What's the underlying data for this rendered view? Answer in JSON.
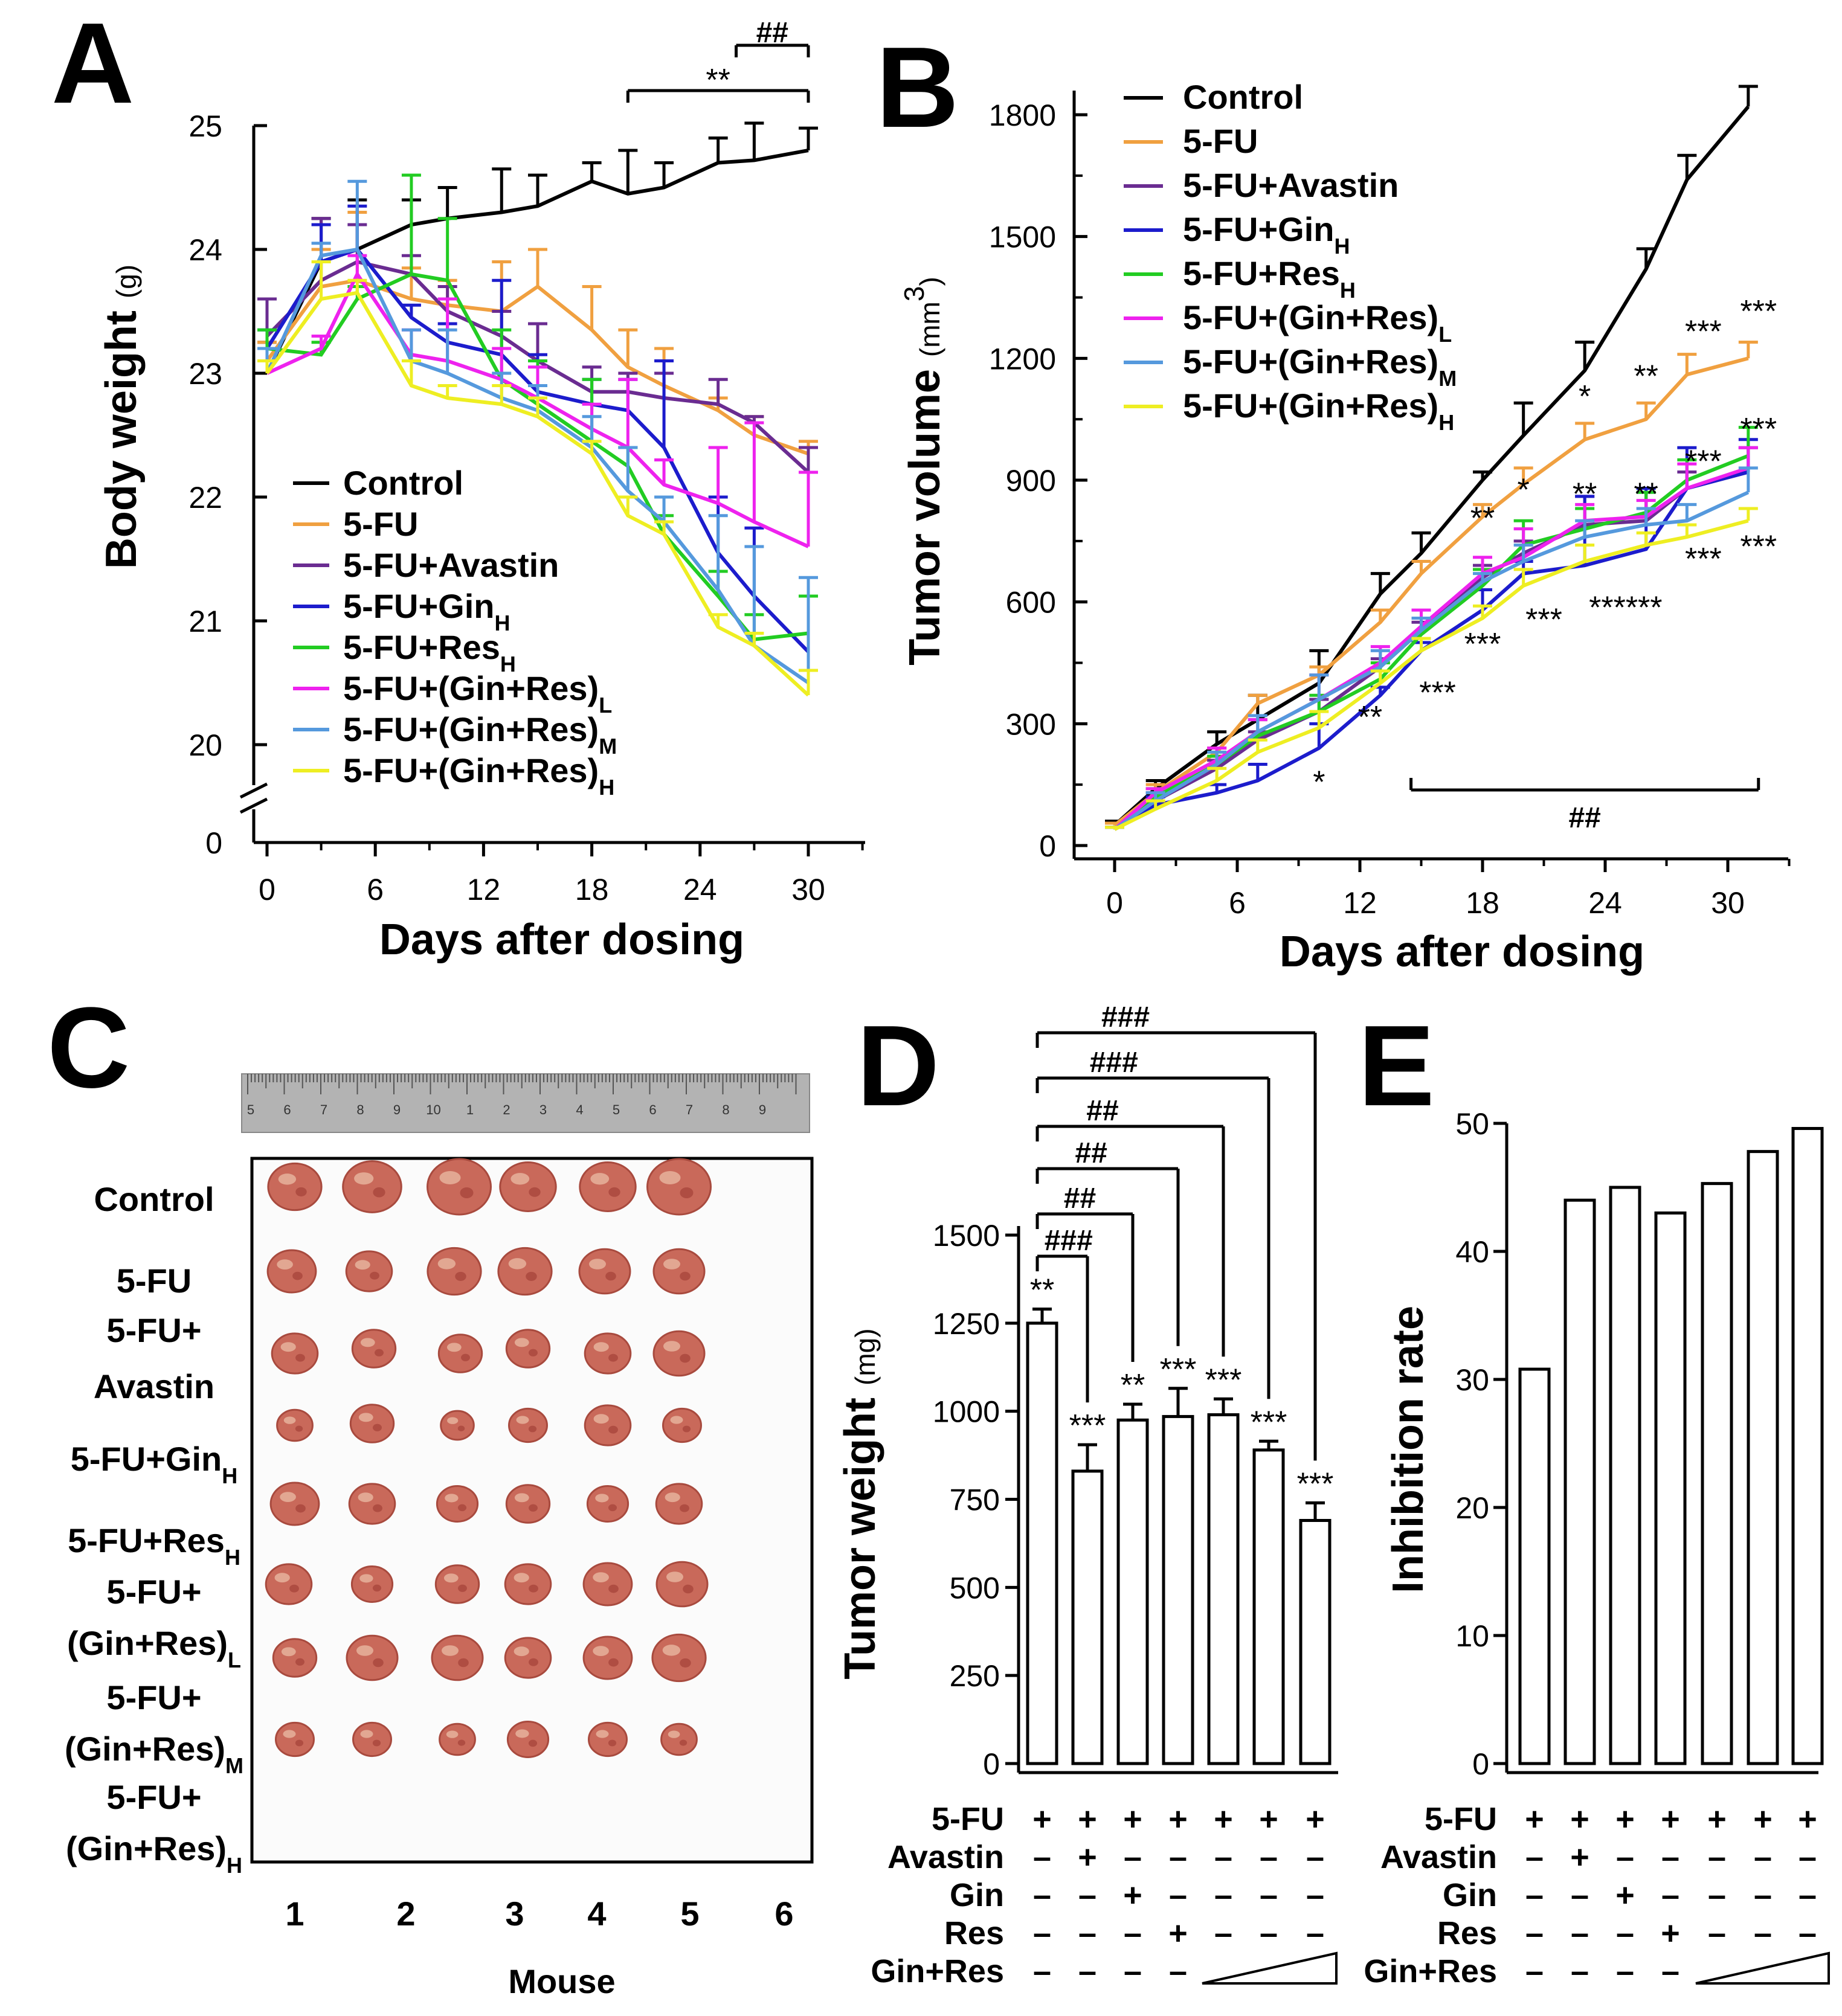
{
  "panels": [
    "A",
    "B",
    "C",
    "D",
    "E"
  ],
  "colors": {
    "Control": "#000000",
    "5-FU": "#f0a040",
    "5-FU+Avastin": "#6a2c91",
    "5-FU+GinH": "#1c1ccc",
    "5-FU+ResH": "#22cc22",
    "5-FU+(Gin+Res)L": "#ee22ee",
    "5-FU+(Gin+Res)M": "#5599dd",
    "5-FU+(Gin+Res)H": "#eeee22"
  },
  "chart_data": [
    {
      "panel": "A",
      "type": "line",
      "xlabel": "Days after dosing",
      "ylabel": "Body weight",
      "yunit": "(g)",
      "x": [
        0,
        3,
        5,
        8,
        10,
        13,
        15,
        18,
        20,
        22,
        25,
        27,
        30
      ],
      "xticks": [
        0,
        6,
        12,
        18,
        24,
        30
      ],
      "yticks": [
        0,
        20,
        21,
        22,
        23,
        24,
        25
      ],
      "ylim": [
        20,
        25
      ],
      "axis_break": true,
      "series": [
        {
          "name": "Control",
          "main": "Control",
          "sub": "",
          "values": [
            23.0,
            23.9,
            24.0,
            24.2,
            24.25,
            24.3,
            24.35,
            24.55,
            24.45,
            24.5,
            24.7,
            24.72,
            24.8
          ],
          "err": [
            0.25,
            0.35,
            0.4,
            0.2,
            0.25,
            0.35,
            0.25,
            0.15,
            0.35,
            0.2,
            0.2,
            0.3,
            0.18
          ]
        },
        {
          "name": "5-FU",
          "main": "5-FU",
          "sub": "",
          "values": [
            23.1,
            23.7,
            23.75,
            23.6,
            23.55,
            23.5,
            23.7,
            23.35,
            23.05,
            22.9,
            22.7,
            22.5,
            22.35
          ],
          "err": [
            0.15,
            0.3,
            0.55,
            0.25,
            0.2,
            0.4,
            0.3,
            0.35,
            0.3,
            0.3,
            0.1,
            0.15,
            0.1
          ]
        },
        {
          "name": "5-FU+Avastin",
          "main": "5-FU+Avastin",
          "sub": "",
          "values": [
            23.3,
            23.75,
            23.9,
            23.8,
            23.5,
            23.3,
            23.1,
            22.85,
            22.85,
            22.8,
            22.75,
            22.6,
            22.2
          ],
          "err": [
            0.3,
            0.5,
            0.3,
            0.15,
            0.2,
            0.2,
            0.3,
            0.2,
            0.15,
            0.2,
            0.2,
            0.05,
            0.2
          ]
        },
        {
          "name": "5-FU+GinH",
          "main": "5-FU+Gin",
          "sub": "H",
          "values": [
            23.2,
            23.9,
            24.0,
            23.45,
            23.25,
            23.15,
            22.85,
            22.75,
            22.7,
            22.4,
            21.55,
            21.2,
            20.75
          ],
          "err": [
            0.15,
            0.3,
            0.35,
            0.1,
            0.15,
            0.6,
            0.3,
            0.2,
            0.25,
            0.7,
            0.45,
            0.55,
            0.45
          ]
        },
        {
          "name": "5-FU+ResH",
          "main": "5-FU+Res",
          "sub": "H",
          "values": [
            23.2,
            23.15,
            23.6,
            23.8,
            23.75,
            22.95,
            22.75,
            22.45,
            22.25,
            21.7,
            21.2,
            20.85,
            20.9
          ],
          "err": [
            0.15,
            0.1,
            0.1,
            0.8,
            0.5,
            0.4,
            0.35,
            0.5,
            0.15,
            0.15,
            0.2,
            0.2,
            0.3
          ]
        },
        {
          "name": "5-FU+(Gin+Res)L",
          "main": "5-FU+(Gin+Res)",
          "sub": "L",
          "values": [
            23.0,
            23.2,
            23.8,
            23.15,
            23.1,
            22.95,
            22.8,
            22.55,
            22.4,
            22.1,
            21.95,
            21.8,
            21.6
          ],
          "err": [
            0.2,
            0.1,
            0.15,
            0.2,
            0.5,
            0.25,
            0.25,
            0.2,
            0.55,
            0.2,
            0.45,
            0.8,
            0.6
          ]
        },
        {
          "name": "5-FU+(Gin+Res)M",
          "main": "5-FU+(Gin+Res)",
          "sub": "M",
          "values": [
            23.0,
            23.95,
            24.0,
            23.1,
            23.0,
            22.8,
            22.7,
            22.4,
            22.05,
            21.8,
            21.25,
            20.8,
            20.5
          ],
          "err": [
            0.2,
            0.1,
            0.55,
            0.25,
            0.35,
            0.2,
            0.2,
            0.25,
            0.35,
            0.2,
            0.6,
            0.8,
            0.85
          ]
        },
        {
          "name": "5-FU+(Gin+Res)H",
          "main": "5-FU+(Gin+Res)",
          "sub": "H",
          "values": [
            23.0,
            23.6,
            23.65,
            22.9,
            22.8,
            22.75,
            22.65,
            22.35,
            21.85,
            21.7,
            20.95,
            20.8,
            20.4
          ],
          "err": [
            0.1,
            0.3,
            0.1,
            0.2,
            0.1,
            0.15,
            0.15,
            0.1,
            0.15,
            0.1,
            0.1,
            0.1,
            0.2
          ]
        }
      ],
      "annotations": [
        {
          "text": "**",
          "from": 20,
          "to": 30
        },
        {
          "text": "##",
          "from": 26,
          "to": 30
        }
      ]
    },
    {
      "panel": "B",
      "type": "line",
      "xlabel": "Days after dosing",
      "ylabel": "Tumor volume",
      "yunit": "(mm",
      "yunit_sup": "3",
      "yunit_end": ")",
      "x": [
        0,
        2,
        5,
        7,
        10,
        13,
        15,
        18,
        20,
        23,
        26,
        28,
        31
      ],
      "xticks": [
        0,
        6,
        12,
        18,
        24,
        30
      ],
      "yticks": [
        0,
        300,
        600,
        900,
        1200,
        1500,
        1800
      ],
      "ylim": [
        0,
        1800
      ],
      "series": [
        {
          "name": "Control",
          "main": "Control",
          "sub": "",
          "values": [
            50,
            140,
            250,
            310,
            400,
            620,
            720,
            900,
            1010,
            1170,
            1420,
            1640,
            1820
          ],
          "err": [
            10,
            20,
            30,
            60,
            80,
            50,
            50,
            20,
            80,
            70,
            50,
            60,
            50
          ]
        },
        {
          "name": "5-FU",
          "main": "5-FU",
          "sub": "",
          "values": [
            50,
            130,
            230,
            350,
            420,
            550,
            670,
            810,
            890,
            1000,
            1050,
            1160,
            1200
          ],
          "err": [
            5,
            20,
            10,
            20,
            20,
            30,
            30,
            30,
            40,
            40,
            40,
            50,
            40
          ]
        },
        {
          "name": "5-FU+Avastin",
          "main": "5-FU+Avastin",
          "sub": "",
          "values": [
            40,
            110,
            190,
            260,
            330,
            440,
            530,
            660,
            720,
            790,
            800,
            880,
            920
          ],
          "err": [
            5,
            20,
            20,
            20,
            30,
            20,
            20,
            30,
            30,
            70,
            70,
            40,
            60
          ]
        },
        {
          "name": "5-FU+GinH",
          "main": "5-FU+Gin",
          "sub": "H",
          "values": [
            40,
            100,
            130,
            160,
            240,
            370,
            480,
            580,
            670,
            690,
            730,
            880,
            920
          ],
          "err": [
            5,
            20,
            20,
            40,
            60,
            20,
            20,
            50,
            30,
            170,
            150,
            100,
            80
          ]
        },
        {
          "name": "5-FU+ResH",
          "main": "5-FU+Res",
          "sub": "H",
          "values": [
            40,
            120,
            200,
            270,
            330,
            410,
            520,
            640,
            740,
            780,
            820,
            900,
            960
          ],
          "err": [
            5,
            20,
            20,
            40,
            40,
            40,
            40,
            40,
            60,
            50,
            50,
            50,
            70
          ]
        },
        {
          "name": "5-FU+(Gin+Res)L",
          "main": "5-FU+(Gin+Res)",
          "sub": "L",
          "values": [
            40,
            130,
            210,
            280,
            360,
            450,
            540,
            670,
            710,
            800,
            810,
            880,
            930
          ],
          "err": [
            5,
            10,
            30,
            30,
            60,
            40,
            40,
            40,
            70,
            40,
            40,
            60,
            50
          ]
        },
        {
          "name": "5-FU+(Gin+Res)M",
          "main": "5-FU+(Gin+Res)",
          "sub": "M",
          "values": [
            40,
            110,
            200,
            280,
            360,
            440,
            530,
            650,
            700,
            760,
            790,
            800,
            870
          ],
          "err": [
            5,
            20,
            30,
            40,
            60,
            40,
            30,
            20,
            40,
            40,
            40,
            40,
            60
          ]
        },
        {
          "name": "5-FU+(Gin+Res)H",
          "main": "5-FU+(Gin+Res)",
          "sub": "H",
          "values": [
            40,
            90,
            160,
            230,
            290,
            400,
            480,
            560,
            640,
            700,
            740,
            760,
            800
          ],
          "err": [
            5,
            20,
            30,
            30,
            40,
            30,
            30,
            30,
            40,
            40,
            30,
            30,
            30
          ]
        }
      ],
      "annotations": [
        {
          "text": "*",
          "x": 10,
          "y": 130
        },
        {
          "text": "**",
          "x": 12.5,
          "y": 290
        },
        {
          "text": "***",
          "x": 15.8,
          "y": 350
        },
        {
          "text": "***",
          "x": 18,
          "y": 470
        },
        {
          "text": "***",
          "x": 21,
          "y": 530
        },
        {
          "text": "**",
          "x": 18,
          "y": 780
        },
        {
          "text": "*",
          "x": 20,
          "y": 850
        },
        {
          "text": "**",
          "x": 23,
          "y": 840
        },
        {
          "text": "**",
          "x": 26,
          "y": 840
        },
        {
          "text": "*",
          "x": 23,
          "y": 1080
        },
        {
          "text": "**",
          "x": 26,
          "y": 1130
        },
        {
          "text": "***",
          "x": 28.8,
          "y": 1240
        },
        {
          "text": "***",
          "x": 31.5,
          "y": 1290
        },
        {
          "text": "***",
          "x": 28.8,
          "y": 920
        },
        {
          "text": "***",
          "x": 31.5,
          "y": 1000
        },
        {
          "text": "******",
          "x": 25,
          "y": 560
        },
        {
          "text": "***",
          "x": 28.8,
          "y": 680
        },
        {
          "text": "***",
          "x": 31.5,
          "y": 710
        }
      ],
      "bracket": {
        "text": "##",
        "from": 14.5,
        "to": 31.5
      }
    },
    {
      "panel": "D",
      "type": "bar",
      "ylabel": "Tumor weight",
      "yunit": "(mg)",
      "values": [
        1250,
        830,
        975,
        985,
        990,
        890,
        690
      ],
      "err": [
        40,
        75,
        45,
        80,
        45,
        25,
        50
      ],
      "yticks": [
        0,
        250,
        500,
        750,
        1000,
        1250,
        1500
      ],
      "ylim": [
        0,
        1500
      ],
      "bar_stars": [
        "**",
        "***",
        "**",
        "***",
        "***",
        "***",
        "***"
      ],
      "brackets": [
        {
          "text": "###",
          "to": 1
        },
        {
          "text": "##",
          "to": 2
        },
        {
          "text": "##",
          "to": 3
        },
        {
          "text": "##",
          "to": 4
        },
        {
          "text": "###",
          "to": 5
        },
        {
          "text": "###",
          "to": 6
        }
      ]
    },
    {
      "panel": "E",
      "type": "bar",
      "ylabel": "Inhibition rate",
      "values": [
        30.8,
        44.0,
        45.0,
        43.0,
        45.3,
        47.8,
        49.6
      ],
      "yticks": [
        0,
        10,
        20,
        30,
        40,
        50
      ],
      "ylim": [
        0,
        50
      ]
    }
  ],
  "group_table": {
    "rows": [
      {
        "label": "5-FU",
        "signs": [
          "+",
          "+",
          "+",
          "+",
          "+",
          "+",
          "+"
        ]
      },
      {
        "label": "Avastin",
        "signs": [
          "-",
          "+",
          "-",
          "-",
          "-",
          "-",
          "-"
        ]
      },
      {
        "label": "Gin",
        "signs": [
          "-",
          "-",
          "+",
          "-",
          "-",
          "-",
          "-"
        ]
      },
      {
        "label": "Res",
        "signs": [
          "-",
          "-",
          "-",
          "+",
          "-",
          "-",
          "-"
        ]
      },
      {
        "label": "Gin+Res",
        "signs": [
          "-",
          "-",
          "-",
          "-",
          "",
          "",
          ""
        ]
      }
    ]
  },
  "panel_c": {
    "row_labels": [
      [
        "Control"
      ],
      [
        "5-FU"
      ],
      [
        "5-FU+",
        "Avastin"
      ],
      [
        "5-FU+GinH"
      ],
      [
        "5-FU+ResH"
      ],
      [
        "5-FU+",
        "(Gin+Res)L"
      ],
      [
        "5-FU+",
        "(Gin+Res)M"
      ],
      [
        "5-FU+",
        "(Gin+Res)H"
      ]
    ],
    "row_label_parts": [
      [
        {
          "main": "Control",
          "sub": ""
        }
      ],
      [
        {
          "main": "5-FU",
          "sub": ""
        }
      ],
      [
        {
          "main": "5-FU+",
          "sub": ""
        },
        {
          "main": "Avastin",
          "sub": ""
        }
      ],
      [
        {
          "main": "5-FU+Gin",
          "sub": "H"
        }
      ],
      [
        {
          "main": "5-FU+Res",
          "sub": "H"
        }
      ],
      [
        {
          "main": "5-FU+",
          "sub": ""
        },
        {
          "main": "(Gin+Res)",
          "sub": "L"
        }
      ],
      [
        {
          "main": "5-FU+",
          "sub": ""
        },
        {
          "main": "(Gin+Res)",
          "sub": "M"
        }
      ],
      [
        {
          "main": "5-FU+",
          "sub": ""
        },
        {
          "main": "(Gin+Res)",
          "sub": "H"
        }
      ]
    ],
    "mouse_numbers": [
      "1",
      "2",
      "3",
      "4",
      "5",
      "6"
    ],
    "mouse_label": "Mouse",
    "ruler_numbers": [
      "5",
      "6",
      "7",
      "8",
      "9",
      "10",
      "1",
      "2",
      "3",
      "4",
      "5",
      "6",
      "7",
      "8",
      "9"
    ]
  }
}
